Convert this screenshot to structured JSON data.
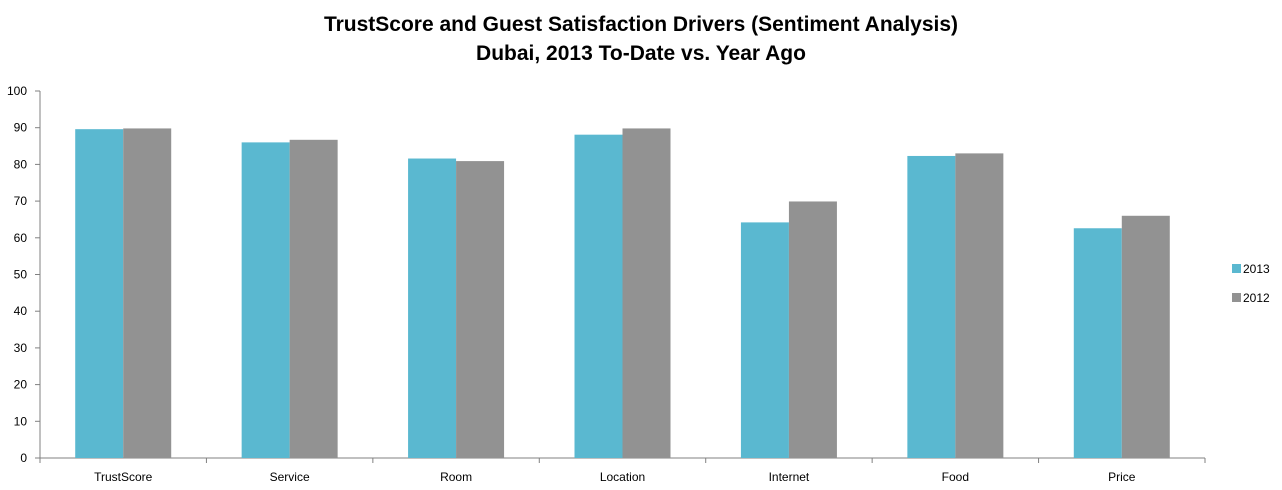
{
  "chart_data": {
    "type": "bar",
    "title": "TrustScore and Guest Satisfaction Drivers (Sentiment Analysis)",
    "subtitle": "Dubai, 2013 To-Date vs. Year Ago",
    "categories": [
      "TrustScore",
      "Service",
      "Room",
      "Location",
      "Internet",
      "Food",
      "Price"
    ],
    "series": [
      {
        "name": "2013",
        "color": "#5ab8d0",
        "values": [
          89.6,
          86,
          81.6,
          88.1,
          64.2,
          82.3,
          62.6
        ]
      },
      {
        "name": "2012",
        "color": "#929292",
        "values": [
          89.8,
          86.7,
          80.9,
          89.8,
          69.9,
          83,
          66
        ]
      }
    ],
    "yticks": [
      "0",
      "10",
      "20",
      "30",
      "40",
      "50",
      "60",
      "70",
      "80",
      "90",
      "100"
    ],
    "ylim": [
      0,
      100
    ],
    "grid": false,
    "legend_position": "right"
  }
}
